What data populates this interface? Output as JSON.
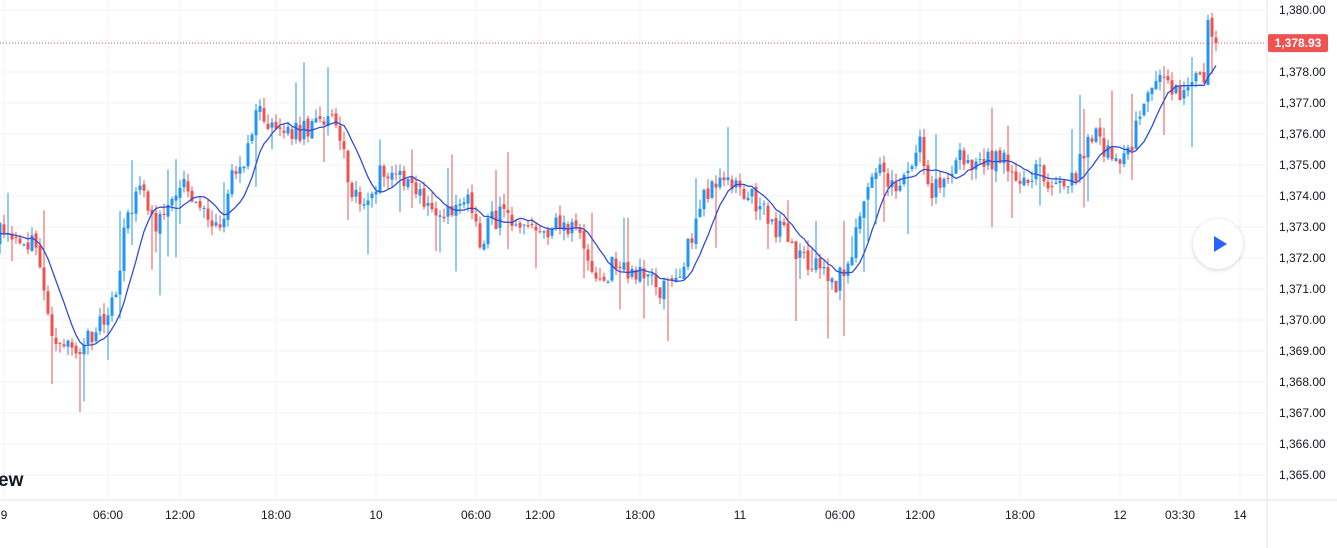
{
  "watermark": "ew",
  "colors": {
    "up": "#2196f3",
    "down": "#ef5350",
    "ma": "#2f4ed8",
    "grid": "#f0f3fa",
    "axis_border": "#e0e3eb",
    "price_tag": "#ef5350"
  },
  "play_icon": "play-icon",
  "chart_data": {
    "type": "candlestick",
    "last_price": 1378.93,
    "last_price_label": "1,378.93",
    "ylim": [
      1364.5,
      1380.3
    ],
    "y_ticks": [
      {
        "value": 1380,
        "label": "1,380.00"
      },
      {
        "value": 1379,
        "label": ""
      },
      {
        "value": 1378,
        "label": "1,378.00"
      },
      {
        "value": 1377,
        "label": "1,377.00"
      },
      {
        "value": 1376,
        "label": "1,376.00"
      },
      {
        "value": 1375,
        "label": "1,375.00"
      },
      {
        "value": 1374,
        "label": "1,374.00"
      },
      {
        "value": 1373,
        "label": "1,373.00"
      },
      {
        "value": 1372,
        "label": "1,372.00"
      },
      {
        "value": 1371,
        "label": "1,371.00"
      },
      {
        "value": 1370,
        "label": "1,370.00"
      },
      {
        "value": 1369,
        "label": "1,369.00"
      },
      {
        "value": 1368,
        "label": "1,368.00"
      },
      {
        "value": 1367,
        "label": "1,367.00"
      },
      {
        "value": 1366,
        "label": "1,366.00"
      },
      {
        "value": 1365,
        "label": "1,365.00"
      }
    ],
    "x_ticks": [
      {
        "index": 2,
        "label": "9"
      },
      {
        "index": 28,
        "label": "06:00"
      },
      {
        "index": 46,
        "label": "12:00"
      },
      {
        "index": 70,
        "label": "18:00"
      },
      {
        "index": 95,
        "label": "10"
      },
      {
        "index": 120,
        "label": "06:00"
      },
      {
        "index": 136,
        "label": "12:00"
      },
      {
        "index": 161,
        "label": "18:00"
      },
      {
        "index": 186,
        "label": "11"
      },
      {
        "index": 211,
        "label": "06:00"
      },
      {
        "index": 231,
        "label": "12:00"
      },
      {
        "index": 256,
        "label": "18:00"
      },
      {
        "index": 281,
        "label": "12"
      },
      {
        "index": 296,
        "label": "03:30"
      },
      {
        "index": 311,
        "label": "14"
      }
    ],
    "x_count": 312,
    "candle_count": 306,
    "anchors": [
      [
        0,
        1372.8
      ],
      [
        3,
        1373.0
      ],
      [
        6,
        1372.2
      ],
      [
        9,
        1372.6
      ],
      [
        12,
        1371.3
      ],
      [
        14,
        1369.5
      ],
      [
        17,
        1369.3
      ],
      [
        21,
        1369.1
      ],
      [
        24,
        1369.4
      ],
      [
        27,
        1370.0
      ],
      [
        30,
        1371.1
      ],
      [
        33,
        1373.5
      ],
      [
        37,
        1374.3
      ],
      [
        40,
        1373.0
      ],
      [
        44,
        1374.2
      ],
      [
        47,
        1374.3
      ],
      [
        50,
        1373.6
      ],
      [
        53,
        1373.2
      ],
      [
        56,
        1373.0
      ],
      [
        59,
        1374.5
      ],
      [
        62,
        1375.1
      ],
      [
        65,
        1376.8
      ],
      [
        68,
        1376.4
      ],
      [
        71,
        1376.1
      ],
      [
        74,
        1376.0
      ],
      [
        77,
        1376.1
      ],
      [
        80,
        1376.3
      ],
      [
        83,
        1376.6
      ],
      [
        86,
        1375.9
      ],
      [
        88,
        1374.6
      ],
      [
        91,
        1373.7
      ],
      [
        94,
        1374.2
      ],
      [
        97,
        1374.9
      ],
      [
        100,
        1374.8
      ],
      [
        103,
        1374.6
      ],
      [
        106,
        1374.0
      ],
      [
        109,
        1373.6
      ],
      [
        112,
        1373.3
      ],
      [
        115,
        1373.5
      ],
      [
        118,
        1374.0
      ],
      [
        121,
        1372.6
      ],
      [
        124,
        1373.2
      ],
      [
        127,
        1373.4
      ],
      [
        130,
        1372.8
      ],
      [
        133,
        1372.7
      ],
      [
        136,
        1373.1
      ],
      [
        139,
        1372.9
      ],
      [
        142,
        1373.1
      ],
      [
        145,
        1373.0
      ],
      [
        148,
        1372.2
      ],
      [
        151,
        1371.0
      ],
      [
        154,
        1371.8
      ],
      [
        157,
        1371.7
      ],
      [
        160,
        1371.4
      ],
      [
        163,
        1371.3
      ],
      [
        166,
        1370.9
      ],
      [
        169,
        1371.2
      ],
      [
        172,
        1371.9
      ],
      [
        175,
        1373.3
      ],
      [
        177,
        1374.1
      ],
      [
        180,
        1374.4
      ],
      [
        183,
        1374.5
      ],
      [
        186,
        1374.2
      ],
      [
        189,
        1373.9
      ],
      [
        192,
        1373.6
      ],
      [
        195,
        1373.0
      ],
      [
        198,
        1372.6
      ],
      [
        201,
        1372.0
      ],
      [
        204,
        1371.9
      ],
      [
        207,
        1371.5
      ],
      [
        210,
        1371.2
      ],
      [
        213,
        1371.7
      ],
      [
        216,
        1373.3
      ],
      [
        219,
        1374.6
      ],
      [
        222,
        1374.8
      ],
      [
        225,
        1374.0
      ],
      [
        228,
        1374.6
      ],
      [
        231,
        1375.6
      ],
      [
        234,
        1374.2
      ],
      [
        236,
        1374.5
      ],
      [
        239,
        1375.0
      ],
      [
        242,
        1375.3
      ],
      [
        245,
        1374.9
      ],
      [
        248,
        1375.1
      ],
      [
        251,
        1375.3
      ],
      [
        254,
        1374.6
      ],
      [
        257,
        1374.3
      ],
      [
        260,
        1374.8
      ],
      [
        263,
        1374.4
      ],
      [
        266,
        1374.2
      ],
      [
        269,
        1374.5
      ],
      [
        272,
        1375.4
      ],
      [
        275,
        1376.0
      ],
      [
        278,
        1375.4
      ],
      [
        281,
        1375.3
      ],
      [
        284,
        1375.6
      ],
      [
        287,
        1377.1
      ],
      [
        290,
        1377.7
      ],
      [
        293,
        1377.5
      ],
      [
        296,
        1377.2
      ],
      [
        299,
        1377.6
      ],
      [
        302,
        1377.9
      ],
      [
        303,
        1379.4
      ],
      [
        305,
        1378.93
      ]
    ]
  }
}
